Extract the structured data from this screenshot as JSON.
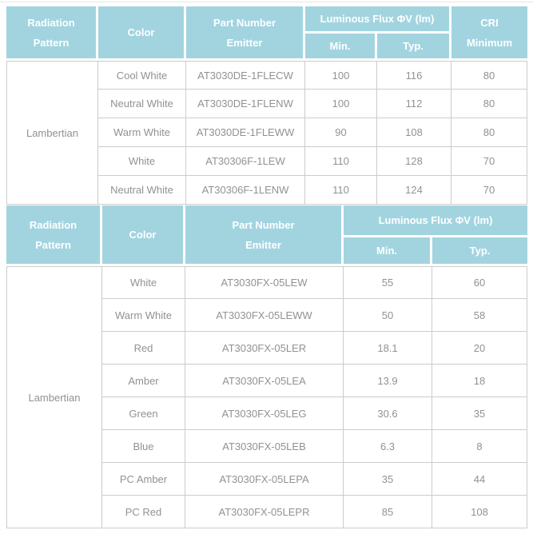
{
  "colors": {
    "page_bg": "#ffffff",
    "top_divider": "#e6e6e6",
    "header_bg": "#a2d4e0",
    "header_text": "#ffffff",
    "body_text": "#8f9295",
    "border": "#cccccc"
  },
  "tables": [
    {
      "name": "spec-table-1",
      "header": {
        "radiation_pattern": "Radiation\nPattern",
        "color": "Color",
        "part_number": "Part Number\nEmitter",
        "luminous_flux": "Luminous Flux ΦV (lm)",
        "min": "Min.",
        "typ": "Typ.",
        "cri": "CRI\nMinimum"
      },
      "radiation_pattern_value": "Lambertian",
      "row_fields": [
        "color",
        "part_number",
        "min",
        "typ",
        "cri"
      ],
      "rows": [
        {
          "color": "Cool White",
          "part_number": "AT3030DE-1FLECW",
          "min": "100",
          "typ": "116",
          "cri": "80"
        },
        {
          "color": "Neutral White",
          "part_number": "AT3030DE-1FLENW",
          "min": "100",
          "typ": "112",
          "cri": "80"
        },
        {
          "color": "Warm White",
          "part_number": "AT3030DE-1FLEWW",
          "min": "90",
          "typ": "108",
          "cri": "80"
        },
        {
          "color": "White",
          "part_number": "AT30306F-1LEW",
          "min": "110",
          "typ": "128",
          "cri": "70"
        },
        {
          "color": "Neutral White",
          "part_number": "AT30306F-1LENW",
          "min": "110",
          "typ": "124",
          "cri": "70"
        }
      ]
    },
    {
      "name": "spec-table-2",
      "header": {
        "radiation_pattern": "Radiation\nPattern",
        "color": "Color",
        "part_number": "Part Number\nEmitter",
        "luminous_flux": "Luminous Flux ΦV (lm)",
        "min": "Min.",
        "typ": "Typ."
      },
      "radiation_pattern_value": "Lambertian",
      "row_fields": [
        "color",
        "part_number",
        "min",
        "typ"
      ],
      "rows": [
        {
          "color": "White",
          "part_number": "AT3030FX-05LEW",
          "min": "55",
          "typ": "60"
        },
        {
          "color": "Warm White",
          "part_number": "AT3030FX-05LEWW",
          "min": "50",
          "typ": "58"
        },
        {
          "color": "Red",
          "part_number": "AT3030FX-05LER",
          "min": "18.1",
          "typ": "20"
        },
        {
          "color": "Amber",
          "part_number": "AT3030FX-05LEA",
          "min": "13.9",
          "typ": "18"
        },
        {
          "color": "Green",
          "part_number": "AT3030FX-05LEG",
          "min": "30.6",
          "typ": "35"
        },
        {
          "color": "Blue",
          "part_number": "AT3030FX-05LEB",
          "min": "6.3",
          "typ": "8"
        },
        {
          "color": "PC Amber",
          "part_number": "AT3030FX-05LEPA",
          "min": "35",
          "typ": "44"
        },
        {
          "color": "PC Red",
          "part_number": "AT3030FX-05LEPR",
          "min": "85",
          "typ": "108"
        }
      ]
    }
  ]
}
